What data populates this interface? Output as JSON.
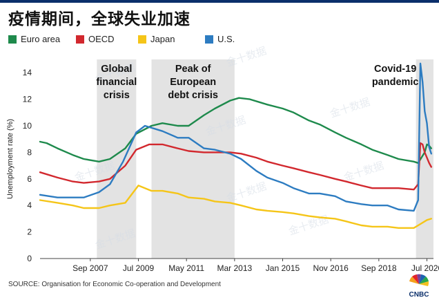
{
  "title": "疫情期间，全球失业加速",
  "source": "SOURCE: Organisation for Economic Co-operation and Development",
  "logo_text": "CNBC",
  "watermark": "金十数据",
  "colors": {
    "euro_area": "#1e8a4c",
    "oecd": "#d2282e",
    "japan": "#f5c518",
    "us": "#2d7cc1",
    "shade": "#e3e3e3",
    "topbar": "#0b2f6b"
  },
  "chart_data": {
    "type": "line",
    "title": "疫情期间，全球失业加速",
    "xlabel": "",
    "ylabel": "Unemployment rate (%)",
    "ylim": [
      0,
      15
    ],
    "y_ticks": [
      0,
      2,
      4,
      6,
      8,
      10,
      12,
      14
    ],
    "x_range": [
      "2005-10",
      "2020-10"
    ],
    "x_ticks": [
      {
        "x": "2007-09",
        "label": "Sep 2007"
      },
      {
        "x": "2009-07",
        "label": "Jul 2009"
      },
      {
        "x": "2011-05",
        "label": "May 2011"
      },
      {
        "x": "2013-03",
        "label": "Mar 2013"
      },
      {
        "x": "2015-01",
        "label": "Jan 2015"
      },
      {
        "x": "2016-11",
        "label": "Nov 2016"
      },
      {
        "x": "2018-09",
        "label": "Sep 2018"
      },
      {
        "x": "2020-07",
        "label": "Jul 2020"
      }
    ],
    "grid": false,
    "legend_position": "top-left",
    "shaded_periods": [
      {
        "start": "2007-12",
        "end": "2009-06",
        "label": [
          "Global",
          "financial",
          "crisis"
        ]
      },
      {
        "start": "2010-01",
        "end": "2013-03",
        "label": [
          "Peak of",
          "European",
          "debt crisis"
        ]
      },
      {
        "start": "2020-02",
        "end": "2020-10",
        "label": [
          "Covid-19",
          "pandemic"
        ]
      }
    ],
    "series": [
      {
        "name": "Euro area",
        "color_key": "euro_area",
        "points": [
          [
            "2005-10",
            8.8
          ],
          [
            "2006-01",
            8.7
          ],
          [
            "2006-06",
            8.3
          ],
          [
            "2007-01",
            7.8
          ],
          [
            "2007-06",
            7.5
          ],
          [
            "2008-01",
            7.3
          ],
          [
            "2008-06",
            7.5
          ],
          [
            "2009-01",
            8.3
          ],
          [
            "2009-06",
            9.4
          ],
          [
            "2010-01",
            10.0
          ],
          [
            "2010-06",
            10.2
          ],
          [
            "2011-01",
            10.0
          ],
          [
            "2011-06",
            10.0
          ],
          [
            "2012-01",
            10.8
          ],
          [
            "2012-06",
            11.3
          ],
          [
            "2013-01",
            11.9
          ],
          [
            "2013-05",
            12.1
          ],
          [
            "2013-10",
            12.0
          ],
          [
            "2014-06",
            11.6
          ],
          [
            "2015-01",
            11.3
          ],
          [
            "2015-06",
            11.0
          ],
          [
            "2016-01",
            10.4
          ],
          [
            "2016-06",
            10.1
          ],
          [
            "2017-01",
            9.5
          ],
          [
            "2017-06",
            9.1
          ],
          [
            "2018-01",
            8.6
          ],
          [
            "2018-06",
            8.2
          ],
          [
            "2019-01",
            7.8
          ],
          [
            "2019-06",
            7.5
          ],
          [
            "2020-01",
            7.3
          ],
          [
            "2020-03",
            7.2
          ],
          [
            "2020-06",
            8.0
          ],
          [
            "2020-07",
            8.6
          ],
          [
            "2020-08",
            8.5
          ],
          [
            "2020-09",
            8.3
          ]
        ]
      },
      {
        "name": "OECD",
        "color_key": "oecd",
        "points": [
          [
            "2005-10",
            6.5
          ],
          [
            "2006-06",
            6.1
          ],
          [
            "2007-01",
            5.8
          ],
          [
            "2007-06",
            5.7
          ],
          [
            "2008-01",
            5.8
          ],
          [
            "2008-06",
            6.0
          ],
          [
            "2009-01",
            7.0
          ],
          [
            "2009-06",
            8.2
          ],
          [
            "2009-12",
            8.6
          ],
          [
            "2010-06",
            8.6
          ],
          [
            "2011-01",
            8.3
          ],
          [
            "2011-06",
            8.1
          ],
          [
            "2012-01",
            8.0
          ],
          [
            "2012-06",
            8.0
          ],
          [
            "2013-01",
            8.0
          ],
          [
            "2013-06",
            7.9
          ],
          [
            "2014-01",
            7.6
          ],
          [
            "2014-06",
            7.3
          ],
          [
            "2015-01",
            7.0
          ],
          [
            "2015-06",
            6.8
          ],
          [
            "2016-01",
            6.5
          ],
          [
            "2016-06",
            6.3
          ],
          [
            "2017-01",
            6.0
          ],
          [
            "2017-06",
            5.8
          ],
          [
            "2018-01",
            5.5
          ],
          [
            "2018-06",
            5.3
          ],
          [
            "2019-01",
            5.3
          ],
          [
            "2019-06",
            5.3
          ],
          [
            "2020-01",
            5.2
          ],
          [
            "2020-03",
            5.6
          ],
          [
            "2020-04",
            8.7
          ],
          [
            "2020-05",
            8.6
          ],
          [
            "2020-06",
            8.0
          ],
          [
            "2020-07",
            7.6
          ],
          [
            "2020-08",
            7.2
          ],
          [
            "2020-09",
            6.9
          ]
        ]
      },
      {
        "name": "Japan",
        "color_key": "japan",
        "points": [
          [
            "2005-10",
            4.4
          ],
          [
            "2006-06",
            4.2
          ],
          [
            "2007-01",
            4.0
          ],
          [
            "2007-06",
            3.8
          ],
          [
            "2008-01",
            3.8
          ],
          [
            "2008-06",
            4.0
          ],
          [
            "2009-01",
            4.2
          ],
          [
            "2009-07",
            5.5
          ],
          [
            "2010-01",
            5.1
          ],
          [
            "2010-06",
            5.1
          ],
          [
            "2011-01",
            4.9
          ],
          [
            "2011-06",
            4.6
          ],
          [
            "2012-01",
            4.5
          ],
          [
            "2012-06",
            4.3
          ],
          [
            "2013-01",
            4.2
          ],
          [
            "2013-06",
            4.0
          ],
          [
            "2014-01",
            3.7
          ],
          [
            "2014-06",
            3.6
          ],
          [
            "2015-01",
            3.5
          ],
          [
            "2015-06",
            3.4
          ],
          [
            "2016-01",
            3.2
          ],
          [
            "2016-06",
            3.1
          ],
          [
            "2017-01",
            3.0
          ],
          [
            "2017-06",
            2.8
          ],
          [
            "2018-01",
            2.5
          ],
          [
            "2018-06",
            2.4
          ],
          [
            "2019-01",
            2.4
          ],
          [
            "2019-06",
            2.3
          ],
          [
            "2020-01",
            2.3
          ],
          [
            "2020-04",
            2.6
          ],
          [
            "2020-07",
            2.9
          ],
          [
            "2020-09",
            3.0
          ]
        ]
      },
      {
        "name": "U.S.",
        "color_key": "us",
        "points": [
          [
            "2005-10",
            4.8
          ],
          [
            "2006-06",
            4.6
          ],
          [
            "2007-01",
            4.6
          ],
          [
            "2007-06",
            4.6
          ],
          [
            "2008-01",
            5.0
          ],
          [
            "2008-06",
            5.6
          ],
          [
            "2008-12",
            7.3
          ],
          [
            "2009-06",
            9.5
          ],
          [
            "2009-10",
            10.0
          ],
          [
            "2010-06",
            9.6
          ],
          [
            "2011-01",
            9.1
          ],
          [
            "2011-06",
            9.1
          ],
          [
            "2012-01",
            8.3
          ],
          [
            "2012-06",
            8.2
          ],
          [
            "2013-01",
            7.9
          ],
          [
            "2013-06",
            7.5
          ],
          [
            "2014-01",
            6.6
          ],
          [
            "2014-06",
            6.1
          ],
          [
            "2015-01",
            5.7
          ],
          [
            "2015-06",
            5.3
          ],
          [
            "2016-01",
            4.9
          ],
          [
            "2016-06",
            4.9
          ],
          [
            "2017-01",
            4.7
          ],
          [
            "2017-06",
            4.3
          ],
          [
            "2018-01",
            4.1
          ],
          [
            "2018-06",
            4.0
          ],
          [
            "2019-01",
            4.0
          ],
          [
            "2019-06",
            3.7
          ],
          [
            "2020-01",
            3.6
          ],
          [
            "2020-03",
            4.4
          ],
          [
            "2020-04",
            14.7
          ],
          [
            "2020-05",
            13.3
          ],
          [
            "2020-06",
            11.1
          ],
          [
            "2020-07",
            10.2
          ],
          [
            "2020-08",
            8.4
          ],
          [
            "2020-09",
            7.9
          ]
        ]
      }
    ]
  }
}
